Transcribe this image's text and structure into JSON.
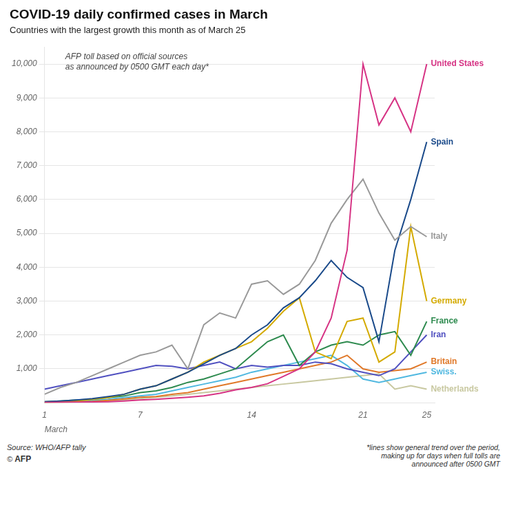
{
  "chart_data": {
    "type": "line",
    "title": "COVID-19 daily confirmed cases in March",
    "subtitle": "Countries with the largest growth this month as of March 25",
    "xlabel": "March",
    "annotations": [
      {
        "text": "AFP toll based on official sources\nas announced by 0500 GMT each day*"
      }
    ],
    "source": "Source: WHO/AFP tally",
    "credit": [
      "©",
      "AFP"
    ],
    "footnote": "*lines show general trend over the period,\nmaking up for days when full tolls are\nannounced after 0500 GMT",
    "x": [
      1,
      2,
      3,
      4,
      5,
      6,
      7,
      8,
      9,
      10,
      11,
      12,
      13,
      14,
      15,
      16,
      17,
      18,
      19,
      20,
      21,
      22,
      23,
      24,
      25
    ],
    "xlim": [
      1,
      25.5
    ],
    "xticks": [
      1,
      7,
      14,
      21,
      25
    ],
    "ylim": [
      0,
      10500
    ],
    "yticks": [
      {
        "value": 1000,
        "label": "1,000"
      },
      {
        "value": 2000,
        "label": "2,000"
      },
      {
        "value": 3000,
        "label": "3,000"
      },
      {
        "value": 4000,
        "label": "4,000"
      },
      {
        "value": 5000,
        "label": "5,000"
      },
      {
        "value": 6000,
        "label": "6,000"
      },
      {
        "value": 7000,
        "label": "7,000"
      },
      {
        "value": 8000,
        "label": "8,000"
      },
      {
        "value": 9000,
        "label": "9,000"
      },
      {
        "value": 10000,
        "label": "10,000"
      }
    ],
    "grid": "y",
    "series": [
      {
        "name": "United States",
        "color": "#d63384",
        "values": [
          10,
          15,
          20,
          25,
          30,
          50,
          80,
          100,
          130,
          160,
          200,
          280,
          380,
          450,
          560,
          780,
          1000,
          1500,
          2500,
          4500,
          10000,
          8200,
          9000,
          8000,
          10000
        ]
      },
      {
        "name": "Italy",
        "color": "#999999",
        "values": [
          250,
          450,
          600,
          800,
          1000,
          1200,
          1400,
          1500,
          1700,
          1000,
          2300,
          2650,
          2500,
          3500,
          3600,
          3200,
          3500,
          4200,
          5300,
          6000,
          6600,
          5600,
          4800,
          5200,
          4900
        ]
      },
      {
        "name": "Spain",
        "color": "#1a4a8a",
        "values": [
          30,
          50,
          80,
          120,
          180,
          250,
          400,
          500,
          700,
          900,
          1150,
          1400,
          1600,
          2000,
          2300,
          2800,
          3100,
          3600,
          4200,
          3700,
          3400,
          1800,
          4500,
          6000,
          7700
        ]
      },
      {
        "name": "Germany",
        "color": "#d4aa00",
        "values": [
          15,
          25,
          50,
          100,
          150,
          250,
          400,
          500,
          700,
          900,
          1200,
          1400,
          1600,
          1800,
          2200,
          2700,
          3100,
          1500,
          1300,
          2400,
          2500,
          1200,
          1500,
          5200,
          3000
        ]
      },
      {
        "name": "France",
        "color": "#2d8a4e",
        "values": [
          30,
          50,
          80,
          100,
          150,
          200,
          300,
          350,
          450,
          600,
          700,
          850,
          1000,
          1400,
          1800,
          2000,
          1100,
          1500,
          1700,
          1800,
          1700,
          2000,
          2100,
          1400,
          2400
        ]
      },
      {
        "name": "Iran",
        "color": "#5050c0",
        "values": [
          400,
          500,
          600,
          700,
          800,
          900,
          1000,
          1100,
          1076,
          1000,
          1100,
          1200,
          1000,
          1100,
          1053,
          1100,
          1100,
          1200,
          1150,
          1000,
          900,
          800,
          1000,
          1500,
          2000
        ]
      },
      {
        "name": "Britain",
        "color": "#e07828",
        "values": [
          10,
          15,
          25,
          40,
          70,
          110,
          160,
          180,
          250,
          300,
          400,
          500,
          600,
          700,
          800,
          900,
          1000,
          1100,
          1200,
          1400,
          1000,
          900,
          950,
          1000,
          1200
        ]
      },
      {
        "name": "Swiss.",
        "color": "#50b8e0",
        "values": [
          10,
          20,
          40,
          70,
          100,
          150,
          200,
          250,
          350,
          450,
          550,
          650,
          750,
          900,
          1000,
          1100,
          1200,
          1300,
          1400,
          1100,
          700,
          600,
          700,
          800,
          900
        ]
      },
      {
        "name": "Netherlands",
        "color": "#c8c8a0",
        "values": [
          5,
          10,
          20,
          30,
          50,
          80,
          120,
          160,
          200,
          250,
          300,
          350,
          400,
          450,
          500,
          550,
          600,
          650,
          700,
          750,
          800,
          850,
          400,
          500,
          400
        ]
      }
    ]
  }
}
